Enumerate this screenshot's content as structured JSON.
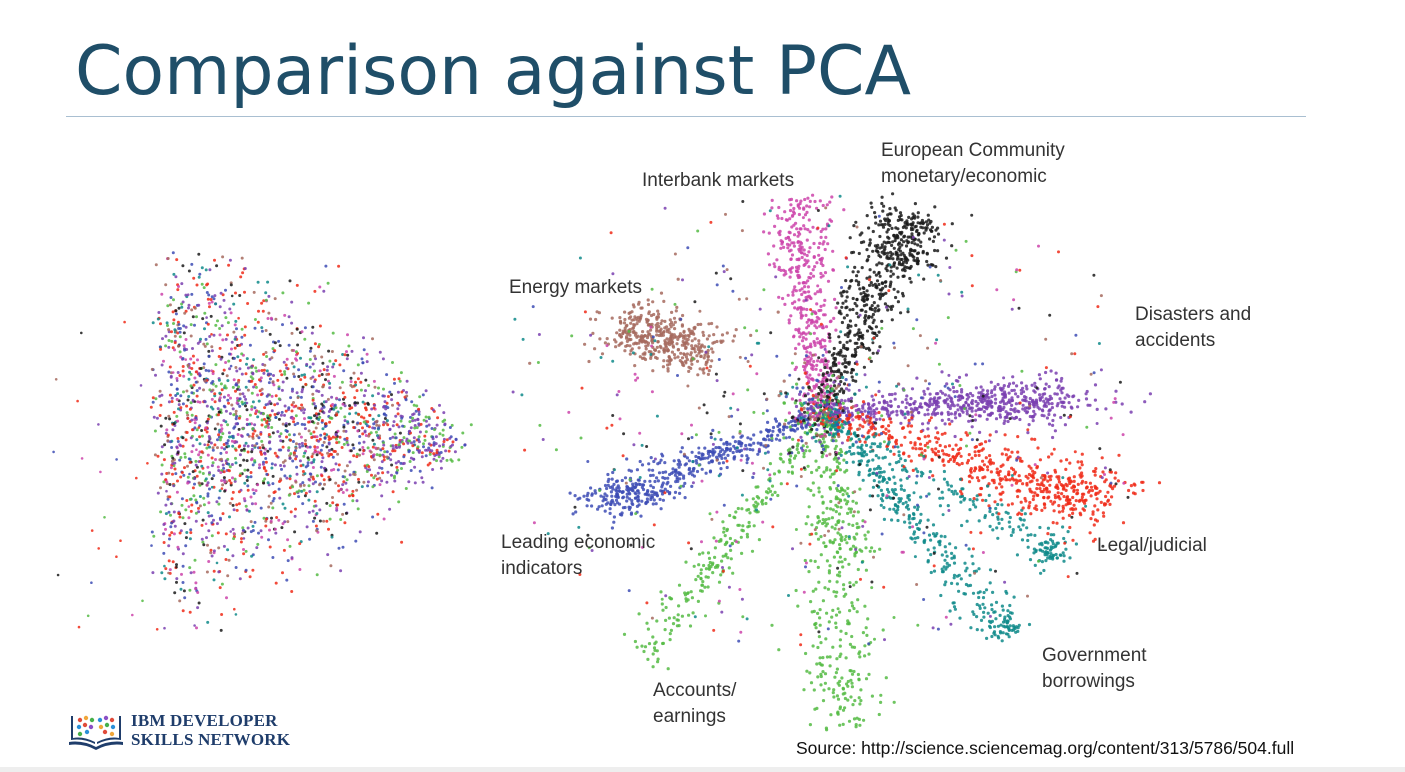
{
  "slide": {
    "title": "Comparison against PCA",
    "source": "Source: http://science.sciencemag.org/content/313/5786/504.full",
    "logo": {
      "line1": "IBM DEVELOPER",
      "line2": "SKILLS NETWORK"
    }
  },
  "colors": {
    "title": "#1f4e68",
    "interbank": "#cc44aa",
    "european": "#1a1a1a",
    "energy": "#a66a5e",
    "disasters": "#7a3fb0",
    "leading": "#3d4cb5",
    "accounts": "#55bb44",
    "legal": "#f02a18",
    "government": "#0e8a8a"
  },
  "chart_data": [
    {
      "type": "scatter",
      "description_visible": "PCA projection (left panel, unlabeled)",
      "title": "",
      "xlabel": "",
      "ylabel": "",
      "series": [
        {
          "color": "#f02a18"
        },
        {
          "color": "#7a3fb0"
        },
        {
          "color": "#55bb44"
        },
        {
          "color": "#3d4cb5"
        },
        {
          "color": "#0e8a8a"
        },
        {
          "color": "#1a1a1a"
        },
        {
          "color": "#cc44aa"
        },
        {
          "color": "#a66a5e"
        }
      ]
    },
    {
      "type": "scatter",
      "title": "",
      "xlabel": "",
      "ylabel": "",
      "series": [
        {
          "name": "Interbank markets",
          "color": "#cc44aa"
        },
        {
          "name": "European Community\nmonetary/economic",
          "color": "#1a1a1a"
        },
        {
          "name": "Energy markets",
          "color": "#a66a5e"
        },
        {
          "name": "Disasters and\naccidents",
          "color": "#7a3fb0"
        },
        {
          "name": "Leading economic\nindicators",
          "color": "#3d4cb5"
        },
        {
          "name": "Accounts/\nearnings",
          "color": "#55bb44"
        },
        {
          "name": "Legal/judicial",
          "color": "#f02a18"
        },
        {
          "name": "Government\nborrowings",
          "color": "#0e8a8a"
        }
      ]
    }
  ]
}
